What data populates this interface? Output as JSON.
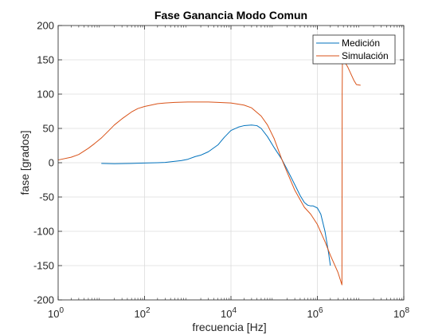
{
  "chart_data": {
    "type": "line",
    "title": "Fase Ganancia Modo Comun",
    "xlabel": "frecuencia [Hz]",
    "ylabel": "fase [grados]",
    "xscale": "log",
    "xlim": [
      1,
      100000000
    ],
    "ylim": [
      -200,
      200
    ],
    "x_ticks": [
      {
        "value": 1,
        "base": "10",
        "exp": "0"
      },
      {
        "value": 100,
        "base": "10",
        "exp": "2"
      },
      {
        "value": 10000,
        "base": "10",
        "exp": "4"
      },
      {
        "value": 1000000,
        "base": "10",
        "exp": "6"
      },
      {
        "value": 100000000,
        "base": "10",
        "exp": "8"
      }
    ],
    "y_ticks": [
      200,
      150,
      100,
      50,
      0,
      -50,
      -100,
      -150,
      -200
    ],
    "grid": true,
    "legend_position": "top-right",
    "series": [
      {
        "name": "Medición",
        "color": "#0072BD",
        "points": [
          [
            10,
            -1
          ],
          [
            20,
            -1.5
          ],
          [
            50,
            -1
          ],
          [
            100,
            -0.5
          ],
          [
            200,
            0
          ],
          [
            300,
            0.5
          ],
          [
            500,
            2
          ],
          [
            700,
            3
          ],
          [
            1000,
            5
          ],
          [
            1500,
            9
          ],
          [
            2000,
            11
          ],
          [
            3000,
            16
          ],
          [
            5000,
            26
          ],
          [
            7000,
            37
          ],
          [
            10000,
            47
          ],
          [
            15000,
            52
          ],
          [
            20000,
            54
          ],
          [
            30000,
            55
          ],
          [
            40000,
            54
          ],
          [
            50000,
            50
          ],
          [
            70000,
            38
          ],
          [
            100000,
            22
          ],
          [
            150000,
            5
          ],
          [
            200000,
            -10
          ],
          [
            300000,
            -32
          ],
          [
            400000,
            -48
          ],
          [
            500000,
            -58
          ],
          [
            600000,
            -62
          ],
          [
            700000,
            -63
          ],
          [
            800000,
            -63
          ],
          [
            1000000,
            -66
          ],
          [
            1200000,
            -75
          ],
          [
            1500000,
            -100
          ],
          [
            1800000,
            -130
          ],
          [
            2000000,
            -150
          ]
        ]
      },
      {
        "name": "Simulación",
        "color": "#D95319",
        "points": [
          [
            1,
            4
          ],
          [
            2,
            8
          ],
          [
            3,
            12
          ],
          [
            5,
            21
          ],
          [
            7,
            28
          ],
          [
            10,
            36
          ],
          [
            15,
            47
          ],
          [
            20,
            55
          ],
          [
            30,
            64
          ],
          [
            50,
            74
          ],
          [
            70,
            79
          ],
          [
            100,
            82
          ],
          [
            200,
            86
          ],
          [
            300,
            87
          ],
          [
            500,
            88
          ],
          [
            1000,
            88.5
          ],
          [
            2000,
            88.5
          ],
          [
            3000,
            88.5
          ],
          [
            5000,
            88
          ],
          [
            10000,
            87
          ],
          [
            20000,
            84
          ],
          [
            30000,
            80
          ],
          [
            50000,
            68
          ],
          [
            70000,
            55
          ],
          [
            100000,
            35
          ],
          [
            150000,
            5
          ],
          [
            200000,
            -14
          ],
          [
            300000,
            -40
          ],
          [
            500000,
            -65
          ],
          [
            700000,
            -75
          ],
          [
            1000000,
            -90
          ],
          [
            1500000,
            -115
          ],
          [
            2000000,
            -135
          ],
          [
            3000000,
            -160
          ],
          [
            3700000,
            -178
          ],
          [
            3750000,
            100
          ],
          [
            3800000,
            150
          ],
          [
            4000000,
            150
          ],
          [
            5000000,
            140
          ],
          [
            7000000,
            120
          ],
          [
            8000000,
            114
          ],
          [
            10000000,
            113
          ]
        ]
      }
    ]
  }
}
